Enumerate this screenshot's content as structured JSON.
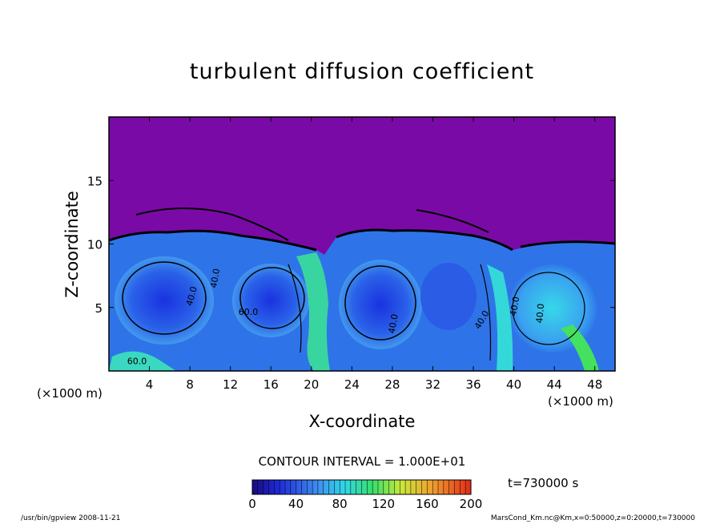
{
  "chart_data": {
    "type": "heatmap",
    "title": "turbulent diffusion coefficient",
    "xlabel": "X-coordinate",
    "ylabel": "Z-coordinate",
    "x_unit_label": "(×1000 m)",
    "xlim": [
      0,
      50
    ],
    "ylim": [
      0,
      20
    ],
    "x_ticks": [
      "4",
      "8",
      "12",
      "16",
      "20",
      "24",
      "28",
      "32",
      "36",
      "40",
      "44",
      "48"
    ],
    "x_tick_values": [
      4,
      8,
      12,
      16,
      20,
      24,
      28,
      32,
      36,
      40,
      44,
      48
    ],
    "y_ticks": [
      "5",
      "10",
      "15"
    ],
    "y_tick_values": [
      5,
      10,
      15
    ],
    "contour_interval_text": "CONTOUR INTERVAL = 1.000E+01",
    "colorbar": {
      "min": 0,
      "max": 200,
      "tick_labels": [
        "0",
        "40",
        "80",
        "120",
        "160",
        "200"
      ],
      "tick_values": [
        0,
        40,
        80,
        120,
        160,
        200
      ]
    },
    "contour_labels": [
      "40.0",
      "40.0",
      "40.0",
      "40.0",
      "40.0",
      "40.0",
      "60.0",
      "60.0"
    ],
    "background_value_color": "#7a0aa6",
    "time_label": "t=730000 s"
  },
  "footer": {
    "left": "/usr/bin/gpview 2008-11-21",
    "right": "MarsCond_Km.nc@Km,x=0:50000,z=0:20000,t=730000"
  }
}
